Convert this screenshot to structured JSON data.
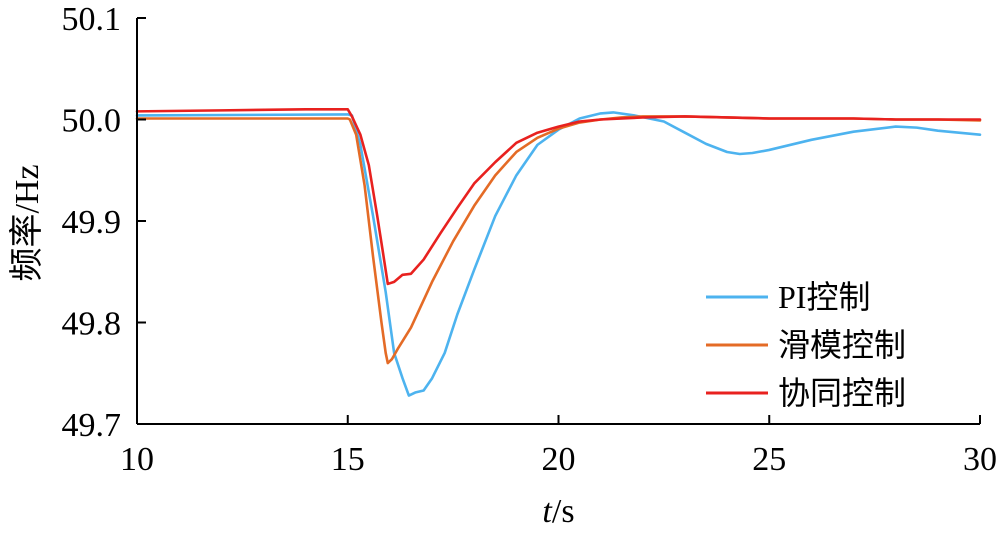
{
  "chart_data": {
    "type": "line",
    "xlabel": {
      "italic": "t",
      "rest": "/s"
    },
    "ylabel": "频率/Hz",
    "xlim": [
      10,
      30
    ],
    "ylim": [
      49.7,
      50.1
    ],
    "xticks": [
      10,
      15,
      20,
      25,
      30
    ],
    "yticks": [
      49.7,
      49.8,
      49.9,
      50.0,
      50.1
    ],
    "xtick_labels": [
      "10",
      "15",
      "20",
      "25",
      "30"
    ],
    "ytick_labels": [
      "49.7",
      "49.8",
      "49.9",
      "50.0",
      "50.1"
    ],
    "grid": false,
    "legend_position": "bottom-right",
    "series": [
      {
        "name": "PI控制",
        "color": "#4db3ef",
        "points": [
          [
            10,
            50.004
          ],
          [
            15.0,
            50.005
          ],
          [
            15.1,
            50.004
          ],
          [
            15.3,
            49.975
          ],
          [
            15.6,
            49.905
          ],
          [
            15.9,
            49.83
          ],
          [
            16.1,
            49.77
          ],
          [
            16.3,
            49.745
          ],
          [
            16.45,
            49.728
          ],
          [
            16.6,
            49.731
          ],
          [
            16.8,
            49.733
          ],
          [
            17.0,
            49.745
          ],
          [
            17.3,
            49.77
          ],
          [
            17.6,
            49.808
          ],
          [
            18.0,
            49.852
          ],
          [
            18.5,
            49.905
          ],
          [
            19.0,
            49.945
          ],
          [
            19.5,
            49.975
          ],
          [
            20.0,
            49.99
          ],
          [
            20.5,
            50.001
          ],
          [
            21.0,
            50.006
          ],
          [
            21.3,
            50.007
          ],
          [
            21.8,
            50.004
          ],
          [
            22.5,
            49.998
          ],
          [
            23.0,
            49.987
          ],
          [
            23.5,
            49.976
          ],
          [
            24.0,
            49.968
          ],
          [
            24.3,
            49.966
          ],
          [
            24.6,
            49.967
          ],
          [
            25.0,
            49.97
          ],
          [
            26.0,
            49.98
          ],
          [
            27.0,
            49.988
          ],
          [
            28.0,
            49.993
          ],
          [
            28.5,
            49.992
          ],
          [
            29.0,
            49.989
          ],
          [
            30.0,
            49.985
          ]
        ]
      },
      {
        "name": "滑模控制",
        "color": "#e46b26",
        "points": [
          [
            10,
            50.001
          ],
          [
            15.0,
            50.001
          ],
          [
            15.05,
            50.0
          ],
          [
            15.2,
            49.985
          ],
          [
            15.4,
            49.935
          ],
          [
            15.6,
            49.865
          ],
          [
            15.8,
            49.8
          ],
          [
            15.9,
            49.77
          ],
          [
            15.95,
            49.76
          ],
          [
            16.05,
            49.764
          ],
          [
            16.2,
            49.775
          ],
          [
            16.5,
            49.795
          ],
          [
            17.0,
            49.84
          ],
          [
            17.5,
            49.88
          ],
          [
            18.0,
            49.915
          ],
          [
            18.5,
            49.945
          ],
          [
            19.0,
            49.968
          ],
          [
            19.5,
            49.982
          ],
          [
            20.0,
            49.991
          ],
          [
            20.5,
            49.997
          ],
          [
            21.0,
            50.0
          ],
          [
            21.5,
            50.002
          ],
          [
            22.0,
            50.003
          ],
          [
            23.0,
            50.003
          ],
          [
            24.0,
            50.002
          ],
          [
            25.0,
            50.001
          ],
          [
            26.0,
            50.001
          ],
          [
            27.0,
            50.001
          ],
          [
            28.0,
            50.0
          ],
          [
            29.0,
            50.0
          ],
          [
            30.0,
            49.999
          ]
        ]
      },
      {
        "name": "协同控制",
        "color": "#e8211f",
        "points": [
          [
            10,
            50.008
          ],
          [
            12,
            50.009
          ],
          [
            14,
            50.01
          ],
          [
            15.0,
            50.01
          ],
          [
            15.1,
            50.003
          ],
          [
            15.3,
            49.985
          ],
          [
            15.5,
            49.955
          ],
          [
            15.7,
            49.905
          ],
          [
            15.85,
            49.865
          ],
          [
            15.95,
            49.838
          ],
          [
            16.1,
            49.84
          ],
          [
            16.3,
            49.847
          ],
          [
            16.5,
            49.848
          ],
          [
            16.8,
            49.862
          ],
          [
            17.2,
            49.888
          ],
          [
            17.6,
            49.913
          ],
          [
            18.0,
            49.937
          ],
          [
            18.5,
            49.958
          ],
          [
            19.0,
            49.977
          ],
          [
            19.5,
            49.987
          ],
          [
            20.0,
            49.993
          ],
          [
            20.5,
            49.998
          ],
          [
            21.0,
            50.0
          ],
          [
            22.0,
            50.002
          ],
          [
            23.0,
            50.003
          ],
          [
            24.0,
            50.002
          ],
          [
            25.0,
            50.001
          ],
          [
            26.0,
            50.001
          ],
          [
            27.0,
            50.001
          ],
          [
            28.0,
            50.0
          ],
          [
            29.0,
            50.0
          ],
          [
            30.0,
            50.0
          ]
        ]
      }
    ]
  }
}
